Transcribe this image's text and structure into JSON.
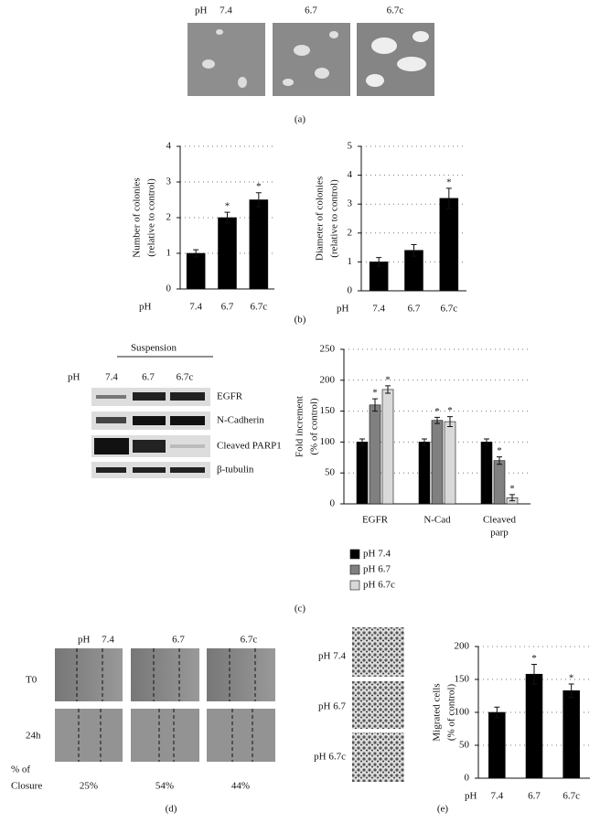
{
  "panel_a": {
    "label_ph": "pH",
    "lanes": [
      "7.4",
      "6.7",
      "6.7c"
    ],
    "caption": "(a)"
  },
  "panel_b": {
    "caption": "(b)"
  },
  "panel_c": {
    "blot": {
      "title": "Suspension",
      "label_ph": "pH",
      "lanes": [
        "7.4",
        "6.7",
        "6.7c"
      ],
      "rows": [
        "EGFR",
        "N-Cadherin",
        "Cleaved PARP1",
        "β-tubulin"
      ]
    },
    "caption": "(c)"
  },
  "panel_d": {
    "label_ph": "pH",
    "lanes": [
      "7.4",
      "6.7",
      "6.7c"
    ],
    "rows": [
      "T0",
      "24h"
    ],
    "closure_label": [
      "% of",
      "Closure"
    ],
    "closure": [
      "25%",
      "54%",
      "44%"
    ],
    "caption": "(d)"
  },
  "panel_e": {
    "rows": [
      "pH 7.4",
      "pH 6.7",
      "pH 6.7c"
    ],
    "caption": "(e)"
  },
  "chart_data": [
    {
      "type": "bar",
      "ylabel": [
        "Number of colonies",
        "(relative to control)"
      ],
      "x_prefix": "pH",
      "categories": [
        "7.4",
        "6.7",
        "6.7c"
      ],
      "series": [
        {
          "color": "#000000",
          "values": [
            1,
            2,
            2.5
          ],
          "errors": [
            0.1,
            0.15,
            0.2
          ],
          "annotations": [
            null,
            "*",
            "*"
          ]
        }
      ],
      "ylim": [
        0,
        4
      ],
      "yticks": [
        0,
        1,
        2,
        3,
        4
      ],
      "grid": true
    },
    {
      "type": "bar",
      "ylabel": [
        "Diameter of colonies",
        "(relative to control)"
      ],
      "x_prefix": "pH",
      "categories": [
        "7.4",
        "6.7",
        "6.7c"
      ],
      "series": [
        {
          "color": "#000000",
          "values": [
            1,
            1.4,
            3.2
          ],
          "errors": [
            0.15,
            0.2,
            0.35
          ],
          "annotations": [
            null,
            null,
            "*"
          ]
        }
      ],
      "ylim": [
        0,
        5
      ],
      "yticks": [
        0,
        1,
        2,
        3,
        4,
        5
      ],
      "grid": true
    },
    {
      "type": "bar",
      "ylabel": [
        "Fold increment",
        "(% of control)"
      ],
      "categories": [
        [
          "EGFR"
        ],
        [
          "N-Cad"
        ],
        [
          "Cleaved",
          "parp"
        ]
      ],
      "series": [
        {
          "name": "pH 7.4",
          "color": "#000000",
          "values": [
            100,
            100,
            100
          ],
          "errors": [
            5,
            5,
            5
          ],
          "annotations": [
            null,
            null,
            null
          ]
        },
        {
          "name": "pH 6.7",
          "color": "#808080",
          "values": [
            160,
            135,
            70
          ],
          "errors": [
            10,
            5,
            6
          ],
          "annotations": [
            "*",
            "*",
            "*"
          ]
        },
        {
          "name": "pH 6.7c",
          "color": "#d9d9d9",
          "values": [
            185,
            133,
            10
          ],
          "errors": [
            6,
            8,
            5
          ],
          "annotations": [
            "*",
            "*",
            "*"
          ]
        }
      ],
      "ylim": [
        0,
        250
      ],
      "yticks": [
        0,
        50,
        100,
        150,
        200,
        250
      ],
      "grid": true,
      "legend": "bottom"
    },
    {
      "type": "bar",
      "ylabel": [
        "Migrated cells",
        "(% of control)"
      ],
      "x_prefix": "pH",
      "categories": [
        "7.4",
        "6.7",
        "6.7c"
      ],
      "series": [
        {
          "color": "#000000",
          "values": [
            100,
            158,
            133
          ],
          "errors": [
            8,
            15,
            10
          ],
          "annotations": [
            null,
            "*",
            "*"
          ]
        }
      ],
      "ylim": [
        0,
        200
      ],
      "yticks": [
        0,
        50,
        100,
        150,
        200
      ],
      "grid": true
    }
  ]
}
